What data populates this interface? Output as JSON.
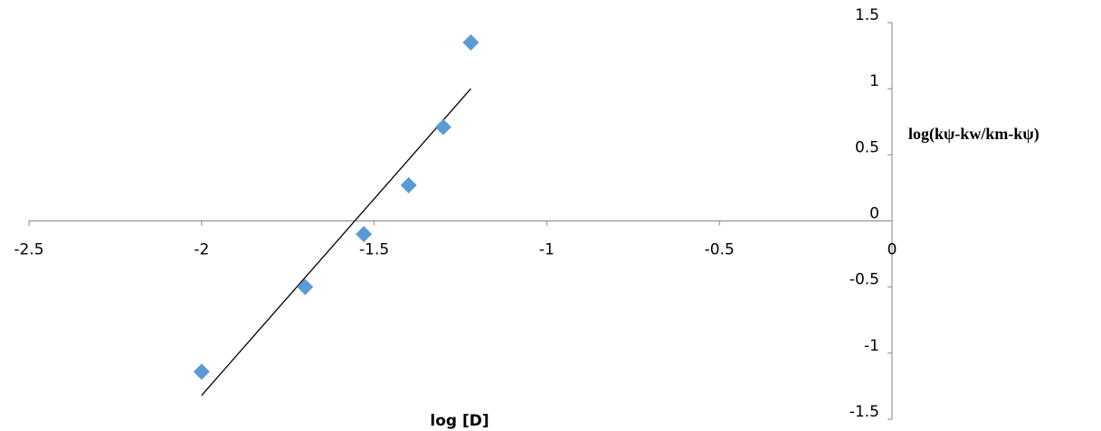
{
  "chart_data": {
    "type": "scatter",
    "x_label": "log [D]",
    "y_label": "log(kψ-kw/km-kψ)",
    "series": [
      {
        "color": "#5b9bd5",
        "x": [
          -2.0,
          -1.7,
          -1.53,
          -1.4,
          -1.3,
          -1.22
        ],
        "values": [
          -1.14,
          -0.5,
          -0.1,
          0.27,
          0.71,
          1.35
        ]
      }
    ],
    "trendline": {
      "color": "#000000",
      "x": [
        -2.0,
        -1.22
      ],
      "values": [
        -1.32,
        1.0
      ]
    },
    "xlim": [
      -2.5,
      0
    ],
    "xticks": [
      -2.5,
      -2,
      -1.5,
      -1,
      -0.5,
      0
    ],
    "ylim": [
      -1.5,
      1.5
    ],
    "yticks": [
      -1.5,
      -1,
      -0.5,
      0,
      0.5,
      1,
      1.5
    ]
  }
}
